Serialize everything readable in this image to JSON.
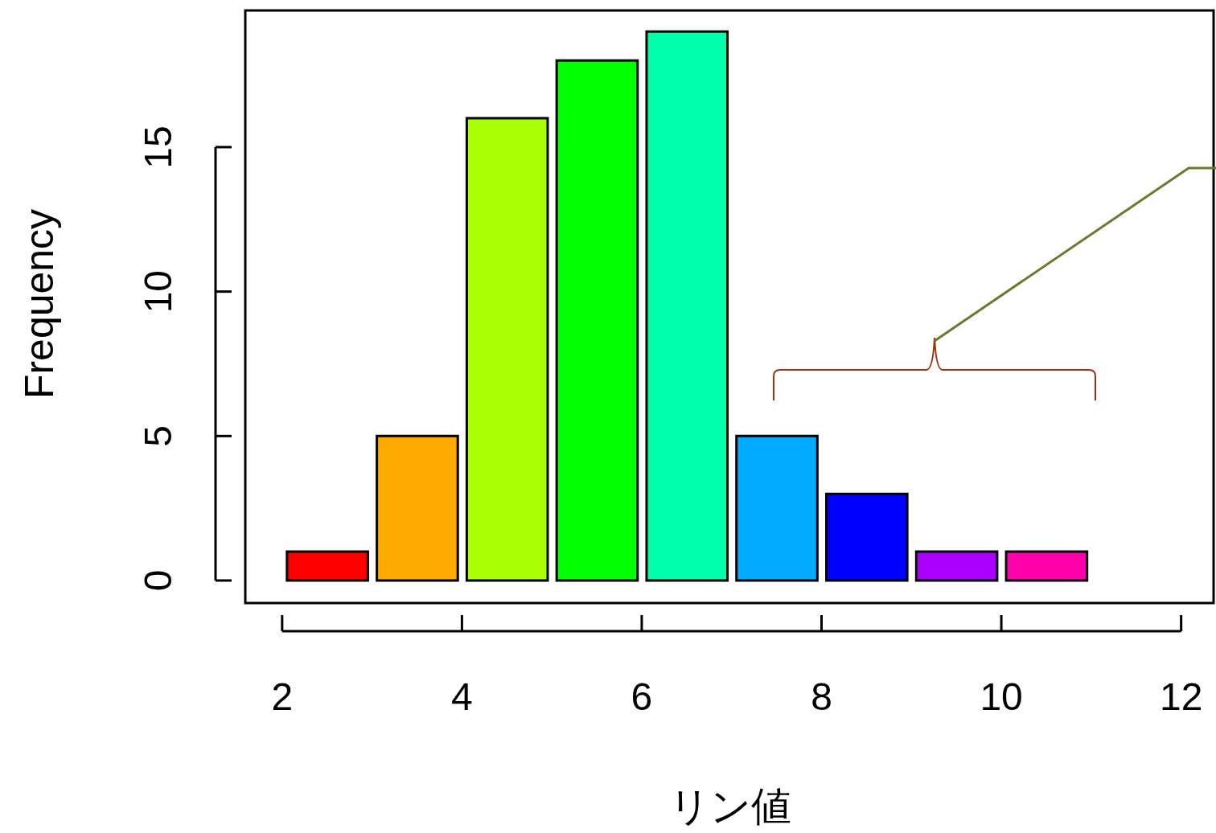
{
  "chart_data": {
    "type": "histogram",
    "xlabel": "リン値",
    "ylabel": "Frequency",
    "bins": [
      2,
      3,
      4,
      5,
      6,
      7,
      8,
      9,
      10,
      11
    ],
    "values": [
      1,
      5,
      16,
      18,
      19,
      5,
      3,
      1,
      1
    ],
    "colors": [
      "#ff0000",
      "#ffaa00",
      "#aaff00",
      "#00ff00",
      "#00ffaa",
      "#00aaff",
      "#0000ff",
      "#aa00ff",
      "#ff00aa"
    ],
    "xlim": [
      1.59,
      12.37
    ],
    "ylim": [
      -0.78,
      19.73
    ],
    "xticks": [
      2,
      4,
      6,
      8,
      10,
      12
    ],
    "yticks": [
      0,
      5,
      10,
      15
    ],
    "grid": false,
    "legend": false
  }
}
